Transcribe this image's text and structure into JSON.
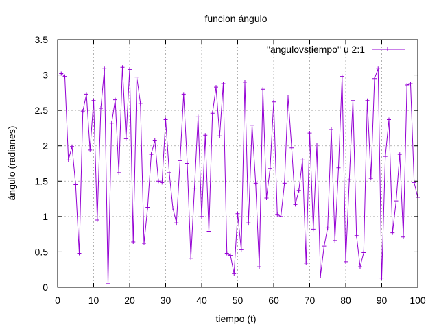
{
  "chart_data": {
    "type": "line",
    "title": "funcion ángulo",
    "xlabel": "tiempo (t)",
    "ylabel": "ángulo (radianes)",
    "xlim": [
      0,
      100
    ],
    "ylim": [
      0,
      3.5
    ],
    "xticks": [
      0,
      10,
      20,
      30,
      40,
      50,
      60,
      70,
      80,
      90,
      100
    ],
    "yticks": [
      0,
      0.5,
      1,
      1.5,
      2,
      2.5,
      3,
      3.5
    ],
    "grid": true,
    "legend_position": "top-right",
    "series": [
      {
        "name": "\"angulovstiempo\" u 2:1",
        "color": "#9400d3",
        "marker": "plus",
        "x": [
          1,
          2,
          3,
          4,
          5,
          6,
          7,
          8,
          9,
          10,
          11,
          12,
          13,
          14,
          15,
          16,
          17,
          18,
          19,
          20,
          21,
          22,
          23,
          24,
          25,
          26,
          27,
          28,
          29,
          30,
          31,
          32,
          33,
          34,
          35,
          36,
          37,
          38,
          39,
          40,
          41,
          42,
          43,
          44,
          45,
          46,
          47,
          48,
          49,
          50,
          51,
          52,
          53,
          54,
          55,
          56,
          57,
          58,
          59,
          60,
          61,
          62,
          63,
          64,
          65,
          66,
          67,
          68,
          69,
          70,
          71,
          72,
          73,
          74,
          75,
          76,
          77,
          78,
          79,
          80,
          81,
          82,
          83,
          84,
          85,
          86,
          87,
          88,
          89,
          90,
          91,
          92,
          93,
          94,
          95,
          96,
          97,
          98,
          99,
          100
        ],
        "y": [
          3.02,
          2.98,
          1.8,
          1.99,
          1.45,
          0.48,
          2.49,
          2.73,
          1.94,
          2.64,
          0.95,
          2.53,
          3.09,
          0.05,
          2.32,
          2.65,
          1.62,
          3.11,
          2.1,
          3.08,
          0.64,
          2.97,
          2.6,
          0.62,
          1.13,
          1.88,
          2.08,
          1.5,
          1.48,
          2.37,
          1.62,
          1.12,
          0.91,
          1.79,
          2.73,
          1.75,
          0.41,
          1.4,
          2.41,
          1.0,
          2.15,
          0.79,
          2.46,
          2.83,
          2.14,
          2.88,
          0.48,
          0.45,
          0.19,
          1.04,
          0.53,
          2.9,
          0.91,
          2.29,
          1.47,
          0.29,
          2.8,
          1.26,
          1.68,
          2.62,
          1.03,
          1.0,
          1.47,
          2.69,
          1.97,
          1.17,
          1.37,
          1.8,
          0.34,
          2.18,
          0.82,
          2.01,
          0.16,
          0.58,
          0.84,
          2.23,
          0.66,
          1.69,
          2.98,
          0.36,
          1.52,
          2.64,
          0.73,
          0.29,
          0.49,
          2.64,
          1.54,
          2.95,
          3.09,
          0.13,
          1.85,
          2.37,
          0.77,
          1.22,
          1.88,
          0.71,
          2.86,
          2.88,
          1.48,
          1.27
        ]
      }
    ]
  }
}
